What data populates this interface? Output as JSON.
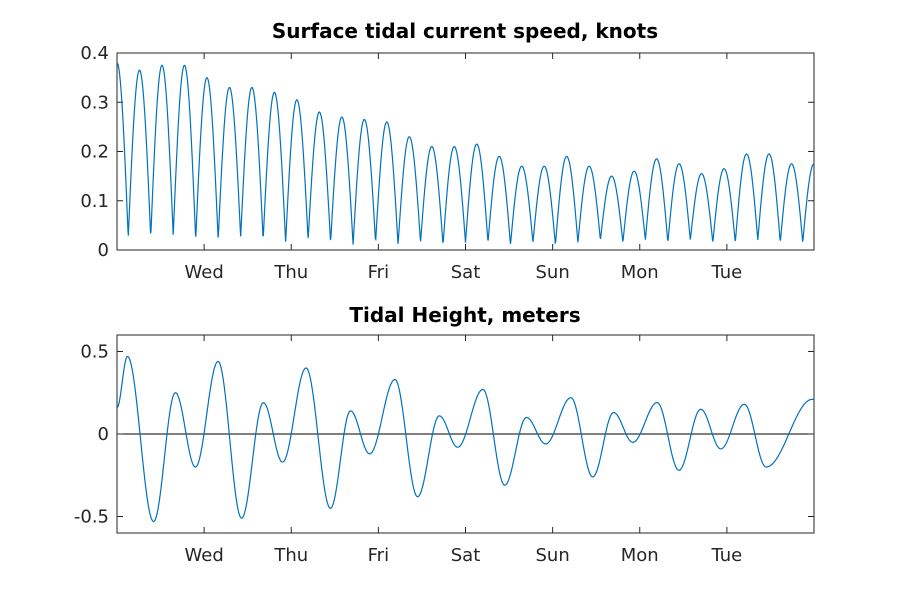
{
  "chart_data": [
    {
      "type": "line",
      "title": "Surface tidal current speed, knots",
      "xlabel": "",
      "ylabel": "",
      "x_range_days": [
        0,
        8
      ],
      "ylim": [
        0,
        0.4
      ],
      "yticks": [
        0,
        0.1,
        0.2,
        0.3,
        0.4
      ],
      "ytick_labels": [
        "0",
        "0.1",
        "0.2",
        "0.3",
        "0.4"
      ],
      "xticks_days": [
        1,
        2,
        3,
        4,
        5,
        6,
        7
      ],
      "xtick_labels": [
        "Wed",
        "Thu",
        "Fri",
        "Sat",
        "Sun",
        "Mon",
        "Tue"
      ],
      "grid": false,
      "series_color": "#0072bd",
      "series": [
        {
          "peaks": [
            0.38,
            0.365,
            0.375,
            0.375,
            0.35,
            0.33,
            0.33,
            0.32,
            0.305,
            0.28,
            0.27,
            0.265,
            0.26,
            0.23,
            0.21,
            0.21,
            0.215,
            0.19,
            0.17,
            0.17,
            0.19,
            0.17,
            0.15,
            0.16,
            0.185,
            0.175,
            0.155,
            0.165,
            0.195,
            0.195,
            0.175
          ],
          "troughs": [
            0.025,
            0.025,
            0.03,
            0.02,
            0.02,
            0.025,
            0.02,
            0.015,
            0.02,
            0.015,
            0.01,
            0.015,
            0.01,
            0.015,
            0.01,
            0.015,
            0.015,
            0.01,
            0.015,
            0.01,
            0.015,
            0.02,
            0.015,
            0.02,
            0.015,
            0.02,
            0.015,
            0.015,
            0.02,
            0.015
          ]
        }
      ]
    },
    {
      "type": "line",
      "title": "Tidal Height, meters",
      "xlabel": "",
      "ylabel": "",
      "x_range_days": [
        0,
        8
      ],
      "ylim": [
        -0.6,
        0.6
      ],
      "yticks": [
        -0.5,
        0,
        0.5
      ],
      "ytick_labels": [
        "-0.5",
        "0",
        "0.5"
      ],
      "xticks_days": [
        1,
        2,
        3,
        4,
        5,
        6,
        7
      ],
      "xtick_labels": [
        "Wed",
        "Thu",
        "Fri",
        "Sat",
        "Sun",
        "Mon",
        "Tue"
      ],
      "grid": false,
      "zero_line": true,
      "series_color": "#0072bd",
      "series": [
        {
          "start_value": 0.16,
          "end_value": 0.21,
          "extrema": [
            [
              0.12,
              0.47
            ],
            [
              0.42,
              -0.53
            ],
            [
              0.67,
              0.25
            ],
            [
              0.9,
              -0.2
            ],
            [
              1.16,
              0.44
            ],
            [
              1.43,
              -0.51
            ],
            [
              1.68,
              0.19
            ],
            [
              1.9,
              -0.17
            ],
            [
              2.17,
              0.4
            ],
            [
              2.45,
              -0.45
            ],
            [
              2.68,
              0.14
            ],
            [
              2.9,
              -0.12
            ],
            [
              3.19,
              0.33
            ],
            [
              3.45,
              -0.38
            ],
            [
              3.7,
              0.11
            ],
            [
              3.91,
              -0.08
            ],
            [
              4.2,
              0.27
            ],
            [
              4.45,
              -0.31
            ],
            [
              4.7,
              0.1
            ],
            [
              4.92,
              -0.06
            ],
            [
              5.21,
              0.22
            ],
            [
              5.46,
              -0.26
            ],
            [
              5.7,
              0.13
            ],
            [
              5.92,
              -0.05
            ],
            [
              6.2,
              0.19
            ],
            [
              6.45,
              -0.22
            ],
            [
              6.7,
              0.15
            ],
            [
              6.93,
              -0.09
            ],
            [
              7.2,
              0.18
            ],
            [
              7.45,
              -0.2
            ],
            [
              7.98,
              0.21
            ]
          ]
        }
      ]
    }
  ]
}
